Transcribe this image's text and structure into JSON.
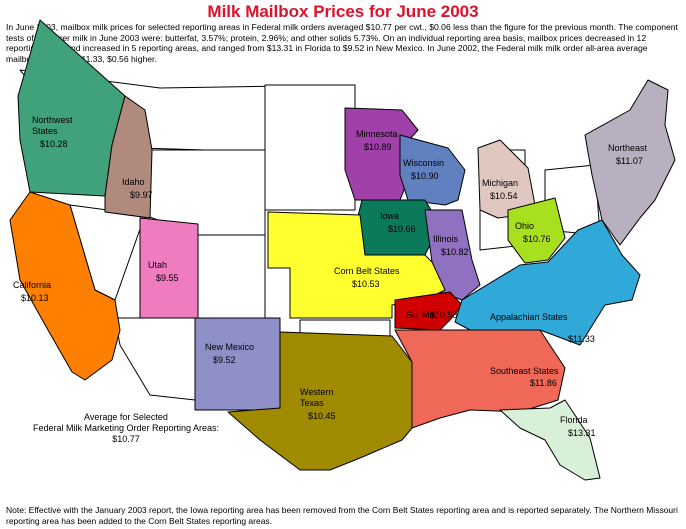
{
  "title": "Milk Mailbox Prices for June 2003",
  "intro": "In June 2003, mailbox milk prices for selected reporting areas in Federal milk orders averaged $10.77 per cwt., $0.06 less than the figure for the previous month. The component tests of producer milk in June 2003 were: butterfat, 3.57%; protein, 2.96%; and other solids 5.73%. On an individual reporting area basis, mailbox prices decreased in 12 reporting areas and increased in 5 reporting areas, and ranged from $13.31 in Florida to $9.52 in New Mexico. In June 2002, the Federal milk milk order all-area average mailbox price was $11.33, $0.56 higher.",
  "regions": [
    {
      "id": "northwest",
      "name": "Northwest\nStates",
      "price": "$10.28",
      "color": "#3fa27a"
    },
    {
      "id": "idaho",
      "name": "Idaho",
      "price": "$9.97",
      "color": "#b08a7c"
    },
    {
      "id": "california",
      "name": "California",
      "price": "$10.13",
      "color": "#ff7f00"
    },
    {
      "id": "utah",
      "name": "Utah",
      "price": "$9.55",
      "color": "#f07cc0"
    },
    {
      "id": "new-mexico",
      "name": "New Mexico",
      "price": "$9.52",
      "color": "#9090c8"
    },
    {
      "id": "western-texas",
      "name": "Western\nTexas",
      "price": "$10.45",
      "color": "#a08a00"
    },
    {
      "id": "minnesota",
      "name": "Minnesota",
      "price": "$10.89",
      "color": "#a040a8"
    },
    {
      "id": "wisconsin",
      "name": "Wisconsin",
      "price": "$10.90",
      "color": "#6080c0"
    },
    {
      "id": "iowa",
      "name": "Iowa",
      "price": "$10.66",
      "color": "#0a7a5a"
    },
    {
      "id": "illinois",
      "name": "Illinois",
      "price": "$10.82",
      "color": "#9070c0"
    },
    {
      "id": "michigan",
      "name": "Michigan",
      "price": "$10.54",
      "color": "#e0c8c0"
    },
    {
      "id": "ohio",
      "name": "Ohio",
      "price": "$10.76",
      "color": "#a8e020"
    },
    {
      "id": "corn-belt",
      "name": "Corn Belt States",
      "price": "$10.53",
      "color": "#ffff30"
    },
    {
      "id": "so-mo",
      "name": "So. Mo.",
      "price": "$10.68",
      "color": "#d00000"
    },
    {
      "id": "appalachian",
      "name": "Appalachian States",
      "price": "$11.33",
      "color": "#30a8d8"
    },
    {
      "id": "southeast",
      "name": "Southeast States",
      "price": "$11.86",
      "color": "#f06858"
    },
    {
      "id": "florida",
      "name": "Florida",
      "price": "$13.31",
      "color": "#d8f0d8"
    },
    {
      "id": "northeast",
      "name": "Northeast",
      "price": "$11.07",
      "color": "#b8b0c0"
    }
  ],
  "average": {
    "line1": "Average for Selected",
    "line2": "Federal Milk Marketing Order Reporting Areas:",
    "value": "$10.77"
  },
  "note": "Note: Effective with the January 2003 report, the Iowa reporting area has been removed from the Corn Belt States reporting area and is reported separately. The Northern Missouri reporting area has been added to the Corn Belt States reporting areas."
}
